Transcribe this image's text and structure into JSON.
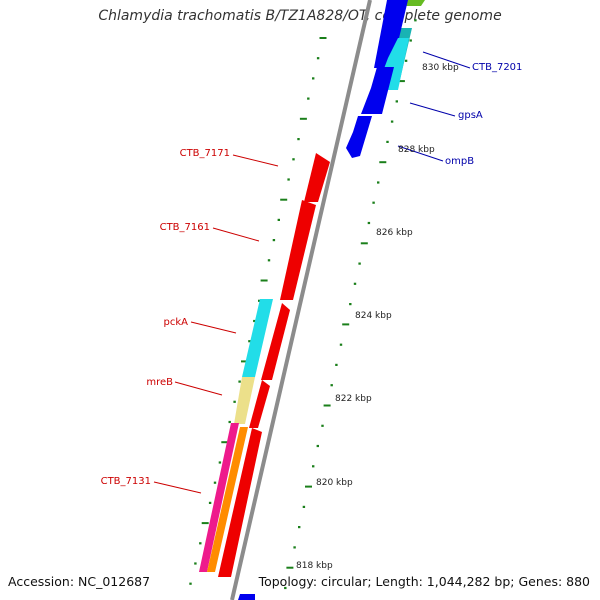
{
  "title": "Chlamydia trachomatis B/TZ1A828/OT, complete genome",
  "accession": "Accession: NC_012687",
  "topology": "Topology: circular; Length: 1,044,282 bp; Genes: 880",
  "colors": {
    "backbone": "#8c8c8c",
    "forward_label": "#0000aa",
    "reverse_label": "#cc0000",
    "tick": "#1a7f1a",
    "blue": "#0000ee",
    "cyan": "#22dde8",
    "red": "#ee0000",
    "khaki": "#ece08a",
    "orange": "#ff8c00",
    "magenta": "#ee1a8c",
    "teal": "#19b3b3",
    "green": "#66bb22"
  },
  "scale_labels": [
    "830 kbp",
    "828 kbp",
    "826 kbp",
    "824 kbp",
    "822 kbp",
    "820 kbp",
    "818 kbp"
  ],
  "forward_genes": [
    {
      "name": "CTB_7201",
      "color": "blue"
    },
    {
      "name": "gpsA",
      "color": "cyan"
    },
    {
      "name": "ompB",
      "color": "blue"
    }
  ],
  "reverse_genes": [
    {
      "name": "CTB_7171",
      "color": "red"
    },
    {
      "name": "CTB_7161",
      "color": "red"
    },
    {
      "name": "pckA",
      "color": "cyan"
    },
    {
      "name": "mreB",
      "color": "khaki"
    },
    {
      "name": "CTB_7131",
      "color": "magenta"
    }
  ]
}
